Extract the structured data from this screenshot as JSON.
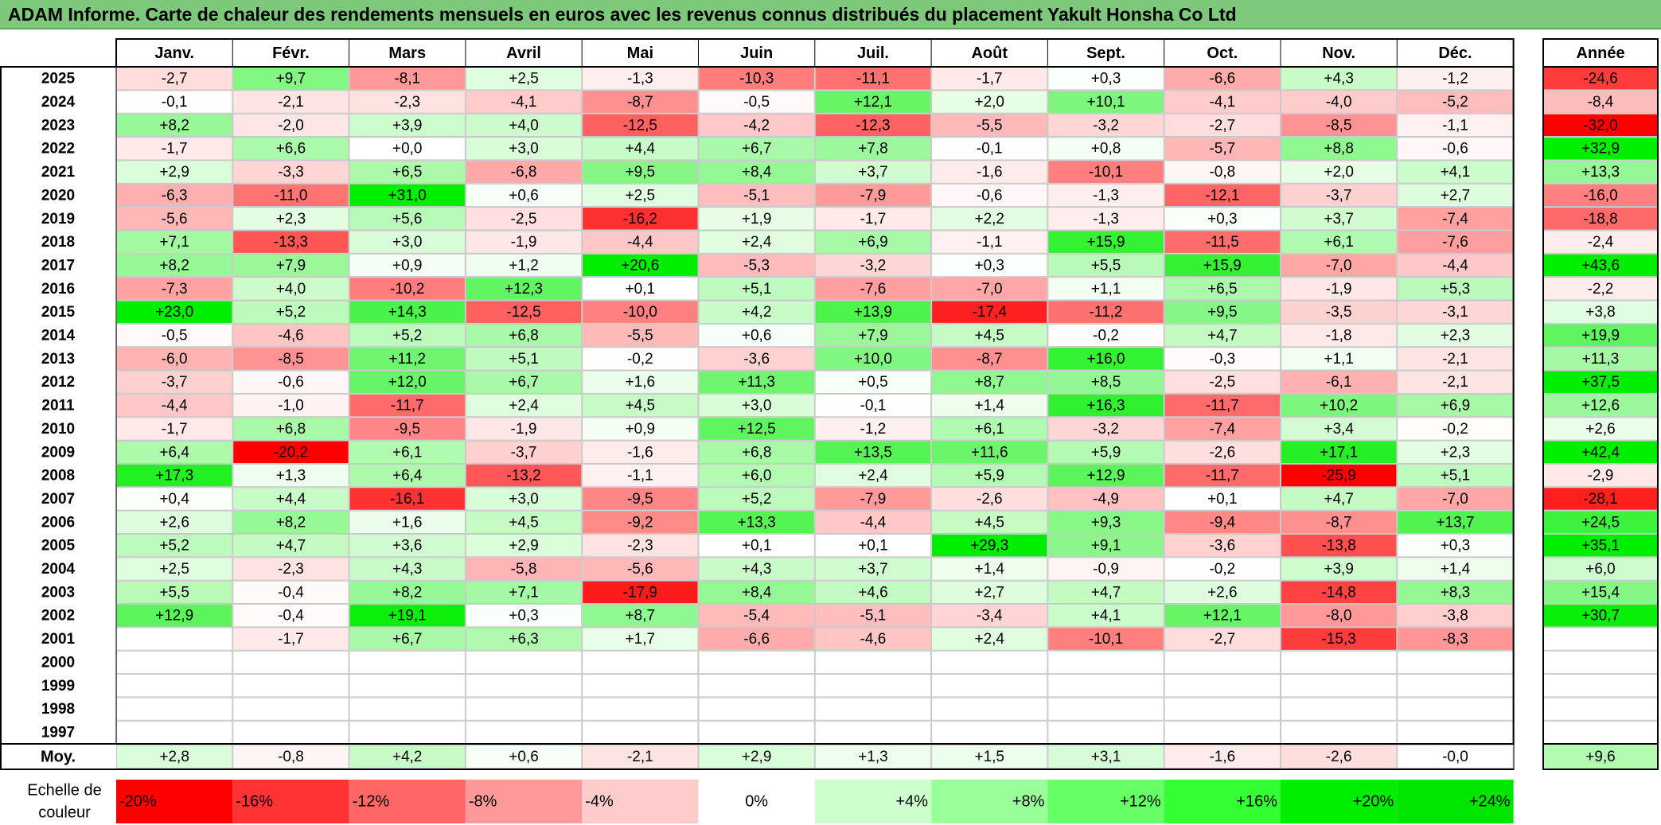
{
  "title": "ADAM Informe. Carte de chaleur des rendements mensuels en euros avec les revenus connus distribués du placement Yakult Honsha Co Ltd",
  "chart_data": {
    "type": "heatmap",
    "title": "ADAM Informe. Carte de chaleur des rendements mensuels en euros avec les revenus connus distribués du placement Yakult Honsha Co Ltd",
    "months": [
      "Janv.",
      "Févr.",
      "Mars",
      "Avril",
      "Mai",
      "Juin",
      "Juil.",
      "Août",
      "Sept.",
      "Oct.",
      "Nov.",
      "Déc."
    ],
    "annual_header": "Année",
    "rows": [
      {
        "year": "2025",
        "values": [
          "-2,7",
          "+9,7",
          "-8,1",
          "+2,5",
          "-1,3",
          "-10,3",
          "-11,1",
          "-1,7",
          "+0,3",
          "-6,6",
          "+4,3",
          "-1,2"
        ],
        "annual": "-24,6"
      },
      {
        "year": "2024",
        "values": [
          "-0,1",
          "-2,1",
          "-2,3",
          "-4,1",
          "-8,7",
          "-0,5",
          "+12,1",
          "+2,0",
          "+10,1",
          "-4,1",
          "-4,0",
          "-5,2"
        ],
        "annual": "-8,4"
      },
      {
        "year": "2023",
        "values": [
          "+8,2",
          "-2,0",
          "+3,9",
          "+4,0",
          "-12,5",
          "-4,2",
          "-12,3",
          "-5,5",
          "-3,2",
          "-2,7",
          "-8,5",
          "-1,1"
        ],
        "annual": "-32,0"
      },
      {
        "year": "2022",
        "values": [
          "-1,7",
          "+6,6",
          "+0,0",
          "+3,0",
          "+4,4",
          "+6,7",
          "+7,8",
          "-0,1",
          "+0,8",
          "-5,7",
          "+8,8",
          "-0,6"
        ],
        "annual": "+32,9"
      },
      {
        "year": "2021",
        "values": [
          "+2,9",
          "-3,3",
          "+6,5",
          "-6,8",
          "+9,5",
          "+8,4",
          "+3,7",
          "-1,6",
          "-10,1",
          "-0,8",
          "+2,0",
          "+4,1"
        ],
        "annual": "+13,3"
      },
      {
        "year": "2020",
        "values": [
          "-6,3",
          "-11,0",
          "+31,0",
          "+0,6",
          "+2,5",
          "-5,1",
          "-7,9",
          "-0,6",
          "-1,3",
          "-12,1",
          "-3,7",
          "+2,7"
        ],
        "annual": "-16,0"
      },
      {
        "year": "2019",
        "values": [
          "-5,6",
          "+2,3",
          "+5,6",
          "-2,5",
          "-16,2",
          "+1,9",
          "-1,7",
          "+2,2",
          "-1,3",
          "+0,3",
          "+3,7",
          "-7,4"
        ],
        "annual": "-18,8"
      },
      {
        "year": "2018",
        "values": [
          "+7,1",
          "-13,3",
          "+3,0",
          "-1,9",
          "-4,4",
          "+2,4",
          "+6,9",
          "-1,1",
          "+15,9",
          "-11,5",
          "+6,1",
          "-7,6"
        ],
        "annual": "-2,4"
      },
      {
        "year": "2017",
        "values": [
          "+8,2",
          "+7,9",
          "+0,9",
          "+1,2",
          "+20,6",
          "-5,3",
          "-3,2",
          "+0,3",
          "+5,5",
          "+15,9",
          "-7,0",
          "-4,4"
        ],
        "annual": "+43,6"
      },
      {
        "year": "2016",
        "values": [
          "-7,3",
          "+4,0",
          "-10,2",
          "+12,3",
          "+0,1",
          "+5,1",
          "-7,6",
          "-7,0",
          "+1,1",
          "+6,5",
          "-1,9",
          "+5,3"
        ],
        "annual": "-2,2"
      },
      {
        "year": "2015",
        "values": [
          "+23,0",
          "+5,2",
          "+14,3",
          "-12,5",
          "-10,0",
          "+4,2",
          "+13,9",
          "-17,4",
          "-11,2",
          "+9,5",
          "-3,5",
          "-3,1"
        ],
        "annual": "+3,8"
      },
      {
        "year": "2014",
        "values": [
          "-0,5",
          "-4,6",
          "+5,2",
          "+6,8",
          "-5,5",
          "+0,6",
          "+7,9",
          "+4,5",
          "-0,2",
          "+4,7",
          "-1,8",
          "+2,3"
        ],
        "annual": "+19,9"
      },
      {
        "year": "2013",
        "values": [
          "-6,0",
          "-8,5",
          "+11,2",
          "+5,1",
          "-0,2",
          "-3,6",
          "+10,0",
          "-8,7",
          "+16,0",
          "-0,3",
          "+1,1",
          "-2,1"
        ],
        "annual": "+11,3"
      },
      {
        "year": "2012",
        "values": [
          "-3,7",
          "-0,6",
          "+12,0",
          "+6,7",
          "+1,6",
          "+11,3",
          "+0,5",
          "+8,7",
          "+8,5",
          "-2,5",
          "-6,1",
          "-2,1"
        ],
        "annual": "+37,5"
      },
      {
        "year": "2011",
        "values": [
          "-4,4",
          "-1,0",
          "-11,7",
          "+2,4",
          "+4,5",
          "+3,0",
          "-0,1",
          "+1,4",
          "+16,3",
          "-11,7",
          "+10,2",
          "+6,9"
        ],
        "annual": "+12,6"
      },
      {
        "year": "2010",
        "values": [
          "-1,7",
          "+6,8",
          "-9,5",
          "-1,9",
          "+0,9",
          "+12,5",
          "-1,2",
          "+6,1",
          "-3,2",
          "-7,4",
          "+3,4",
          "-0,2"
        ],
        "annual": "+2,6"
      },
      {
        "year": "2009",
        "values": [
          "+6,4",
          "-20,2",
          "+6,1",
          "-3,7",
          "-1,6",
          "+6,8",
          "+13,5",
          "+11,6",
          "+5,9",
          "-2,6",
          "+17,1",
          "+2,3"
        ],
        "annual": "+42,4"
      },
      {
        "year": "2008",
        "values": [
          "+17,3",
          "+1,3",
          "+6,4",
          "-13,2",
          "-1,1",
          "+6,0",
          "+2,4",
          "+5,9",
          "+12,9",
          "-11,7",
          "-25,9",
          "+5,1"
        ],
        "annual": "-2,9"
      },
      {
        "year": "2007",
        "values": [
          "+0,4",
          "+4,4",
          "-16,1",
          "+3,0",
          "-9,5",
          "+5,2",
          "-7,9",
          "-2,6",
          "-4,9",
          "+0,1",
          "+4,7",
          "-7,0"
        ],
        "annual": "-28,1"
      },
      {
        "year": "2006",
        "values": [
          "+2,6",
          "+8,2",
          "+1,6",
          "+4,5",
          "-9,2",
          "+13,3",
          "-4,4",
          "+4,5",
          "+9,3",
          "-9,4",
          "-8,7",
          "+13,7"
        ],
        "annual": "+24,5"
      },
      {
        "year": "2005",
        "values": [
          "+5,2",
          "+4,7",
          "+3,6",
          "+2,9",
          "-2,3",
          "+0,1",
          "+0,1",
          "+29,3",
          "+9,1",
          "-3,6",
          "-13,8",
          "+0,3"
        ],
        "annual": "+35,1"
      },
      {
        "year": "2004",
        "values": [
          "+2,5",
          "-2,3",
          "+4,3",
          "-5,8",
          "-5,6",
          "+4,3",
          "+3,7",
          "+1,4",
          "-0,9",
          "-0,2",
          "+3,9",
          "+1,4"
        ],
        "annual": "+6,0"
      },
      {
        "year": "2003",
        "values": [
          "+5,5",
          "-0,4",
          "+8,2",
          "+7,1",
          "-17,9",
          "+8,4",
          "+4,6",
          "+2,7",
          "+4,7",
          "+2,6",
          "-14,8",
          "+8,3"
        ],
        "annual": "+15,4"
      },
      {
        "year": "2002",
        "values": [
          "+12,9",
          "-0,4",
          "+19,1",
          "+0,3",
          "+8,7",
          "-5,4",
          "-5,1",
          "-3,4",
          "+4,1",
          "+12,1",
          "-8,0",
          "-3,8"
        ],
        "annual": "+30,7"
      },
      {
        "year": "2001",
        "values": [
          "",
          "-1,7",
          "+6,7",
          "+6,3",
          "+1,7",
          "-6,6",
          "-4,6",
          "+2,4",
          "-10,1",
          "-2,7",
          "-15,3",
          "-8,3"
        ],
        "annual": ""
      },
      {
        "year": "2000",
        "values": [
          "",
          "",
          "",
          "",
          "",
          "",
          "",
          "",
          "",
          "",
          "",
          ""
        ],
        "annual": ""
      },
      {
        "year": "1999",
        "values": [
          "",
          "",
          "",
          "",
          "",
          "",
          "",
          "",
          "",
          "",
          "",
          ""
        ],
        "annual": ""
      },
      {
        "year": "1998",
        "values": [
          "",
          "",
          "",
          "",
          "",
          "",
          "",
          "",
          "",
          "",
          "",
          ""
        ],
        "annual": ""
      },
      {
        "year": "1997",
        "values": [
          "",
          "",
          "",
          "",
          "",
          "",
          "",
          "",
          "",
          "",
          "",
          ""
        ],
        "annual": ""
      }
    ],
    "average": {
      "label": "Moy.",
      "values": [
        "+2,8",
        "-0,8",
        "+4,2",
        "+0,6",
        "-2,1",
        "+2,9",
        "+1,3",
        "+1,5",
        "+3,1",
        "-1,6",
        "-2,6",
        "-0,0"
      ],
      "annual": "+9,6"
    },
    "scale": {
      "label_line1": "Echelle de",
      "label_line2": "couleur",
      "steps": [
        {
          "label": "-20%",
          "value": -20,
          "color": "#ff0000"
        },
        {
          "label": "-16%",
          "value": -16,
          "color": "#ff3333"
        },
        {
          "label": "-12%",
          "value": -12,
          "color": "#ff6666"
        },
        {
          "label": "-8%",
          "value": -8,
          "color": "#ff9999"
        },
        {
          "label": "-4%",
          "value": -4,
          "color": "#ffcccc"
        },
        {
          "label": "0%",
          "value": 0,
          "color": "#ffffff"
        },
        {
          "label": "+4%",
          "value": 4,
          "color": "#ccffcc"
        },
        {
          "label": "+8%",
          "value": 8,
          "color": "#99ff99"
        },
        {
          "label": "+12%",
          "value": 12,
          "color": "#66ff66"
        },
        {
          "label": "+16%",
          "value": 16,
          "color": "#33ff33"
        },
        {
          "label": "+20%",
          "value": 20,
          "color": "#00ee00"
        },
        {
          "label": "+24%",
          "value": 24,
          "color": "#00e600"
        }
      ]
    },
    "colors": {
      "negative": "#ff0000",
      "zero": "#ffffff",
      "positive": "#00ee00",
      "title_bg": "#7dc87a"
    }
  }
}
